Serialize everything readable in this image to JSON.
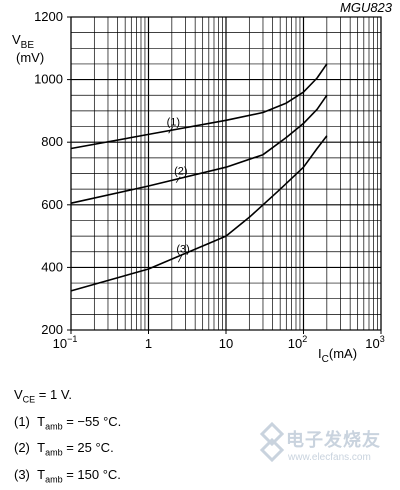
{
  "chart_data": {
    "type": "line",
    "code": "MGU823",
    "ylabel_main": "V",
    "ylabel_sub": "BE",
    "ylabel_unit": "(mV)",
    "xlabel_main": "I",
    "xlabel_sub": "C",
    "xlabel_unit": "(mA)",
    "x_scale": "log",
    "xlim": [
      0.1,
      1000
    ],
    "ylim": [
      200,
      1200
    ],
    "grid": true,
    "y_ticks": [
      "200",
      "400",
      "600",
      "800",
      "1000",
      "1200"
    ],
    "x_ticks": [
      {
        "base": "10",
        "exp": "−1"
      },
      {
        "base": "1",
        "exp": ""
      },
      {
        "base": "10",
        "exp": ""
      },
      {
        "base": "10",
        "exp": "2"
      },
      {
        "base": "10",
        "exp": "3"
      }
    ],
    "series": [
      {
        "name": "(1)",
        "x": [
          0.1,
          1,
          10,
          30,
          60,
          100,
          150,
          200
        ],
        "y": [
          780,
          825,
          870,
          895,
          925,
          960,
          1005,
          1050
        ]
      },
      {
        "name": "(2)",
        "x": [
          0.1,
          1,
          10,
          30,
          60,
          100,
          150,
          200
        ],
        "y": [
          605,
          660,
          720,
          760,
          815,
          860,
          905,
          950
        ]
      },
      {
        "name": "(3)",
        "x": [
          0.1,
          1,
          10,
          20,
          50,
          100,
          150,
          200
        ],
        "y": [
          325,
          395,
          500,
          560,
          650,
          720,
          780,
          820
        ]
      }
    ]
  },
  "notes": {
    "vce": {
      "main": "V",
      "sub": "CE",
      "rest": " = 1 V."
    },
    "items": [
      {
        "num": "(1)",
        "main": "T",
        "sub": "amb",
        "rest": " = −55 °C."
      },
      {
        "num": "(2)",
        "main": "T",
        "sub": "amb",
        "rest": " = 25 °C."
      },
      {
        "num": "(3)",
        "main": "T",
        "sub": "amb",
        "rest": " = 150 °C."
      }
    ]
  },
  "watermark": {
    "text": "电子发烧友",
    "url": "www.elecfans.com"
  }
}
